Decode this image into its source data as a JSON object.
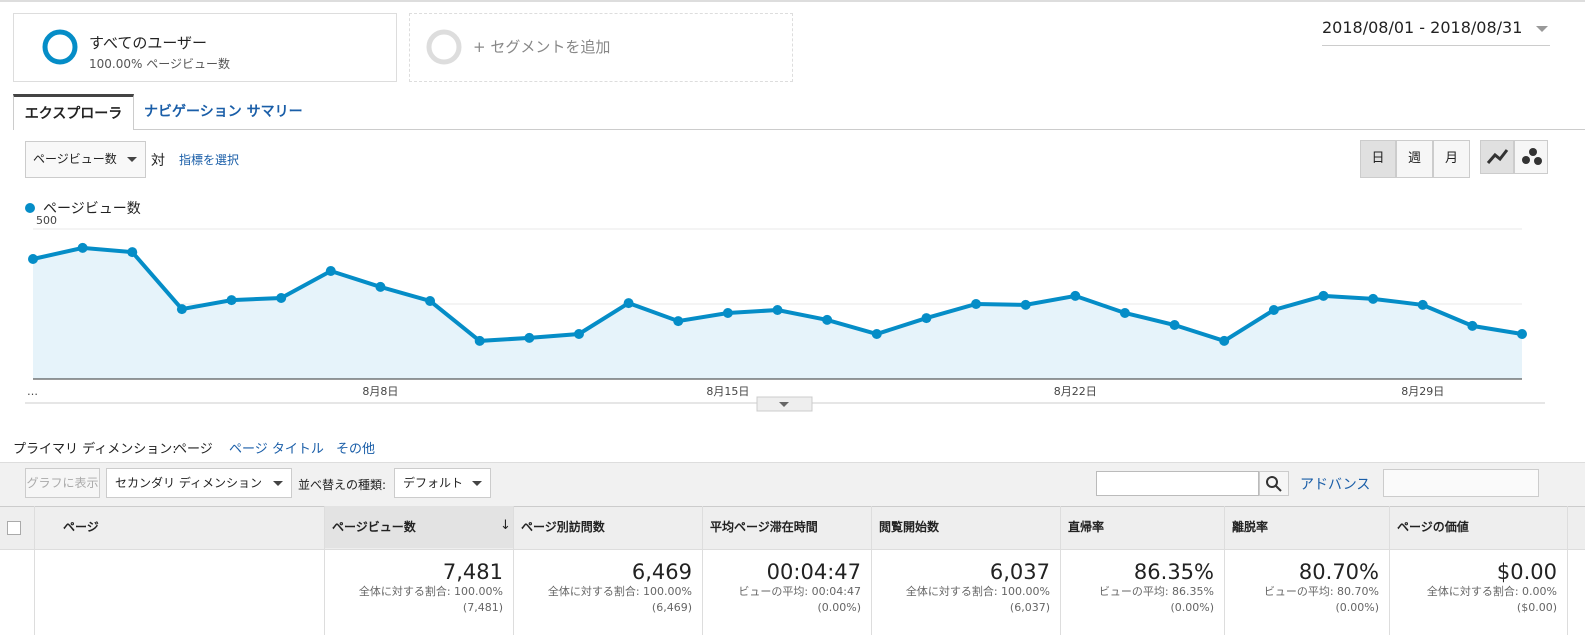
{
  "segments": [
    {
      "title": "すべてのユーザー",
      "subtitle": "100.00% ページビュー数"
    },
    {
      "title": "+ セグメントを追加"
    }
  ],
  "date_range": "2018/08/01 - 2018/08/31",
  "tabs": [
    "エクスプローラ",
    "ナビゲーション サマリー"
  ],
  "metric_selector": "ページビュー数",
  "versus": "対",
  "select_metric": "指標を選択",
  "period_buttons": [
    "日",
    "週",
    "月"
  ],
  "chart_data": {
    "type": "line",
    "categories": [
      "…",
      null,
      null,
      null,
      null,
      null,
      null,
      "8月8日",
      null,
      null,
      null,
      null,
      null,
      null,
      "8月15日",
      null,
      null,
      null,
      null,
      null,
      null,
      "8月22日",
      null,
      null,
      null,
      null,
      null,
      null,
      "8月29日",
      null,
      null
    ],
    "series": [
      {
        "name": "ページビュー数",
        "color": "#058dc7",
        "values": [
          400,
          437,
          423,
          233,
          263,
          270,
          360,
          307,
          260,
          127,
          137,
          150,
          253,
          193,
          220,
          230,
          197,
          150,
          203,
          250,
          247,
          277,
          220,
          180,
          127,
          230,
          277,
          267,
          247,
          177,
          150
        ]
      }
    ],
    "ylim": [
      0,
      500
    ],
    "yticks": [
      250,
      500
    ],
    "grid": true
  },
  "primary_dimension": {
    "label": "プライマリ ディメンション:",
    "options": [
      "ページ",
      "ページ タイトル",
      "その他"
    ]
  },
  "toolbar": {
    "show_graph": "グラフに表示",
    "secondary": "セカンダリ ディメンション",
    "sort_label": "並べ替えの種類:",
    "sort": "デフォルト",
    "advanced": "アドバンス"
  },
  "table": {
    "headers": [
      "ページ",
      "ページビュー数",
      "ページ別訪問数",
      "平均ページ滞在時間",
      "閲覧開始数",
      "直帰率",
      "離脱率",
      "ページの価値"
    ],
    "totals": [
      {
        "value": "7,481",
        "note": "全体に対する割合: 100.00%",
        "sub": "(7,481)"
      },
      {
        "value": "6,469",
        "note": "全体に対する割合: 100.00%",
        "sub": "(6,469)"
      },
      {
        "value": "00:04:47",
        "note": "ビューの平均: 00:04:47",
        "sub": "(0.00%)"
      },
      {
        "value": "6,037",
        "note": "全体に対する割合: 100.00%",
        "sub": "(6,037)"
      },
      {
        "value": "86.35%",
        "note": "ビューの平均: 86.35%",
        "sub": "(0.00%)"
      },
      {
        "value": "80.70%",
        "note": "ビューの平均: 80.70%",
        "sub": "(0.00%)"
      },
      {
        "value": "$0.00",
        "note": "全体に対する割合: 0.00%",
        "sub": "($0.00)"
      }
    ]
  }
}
